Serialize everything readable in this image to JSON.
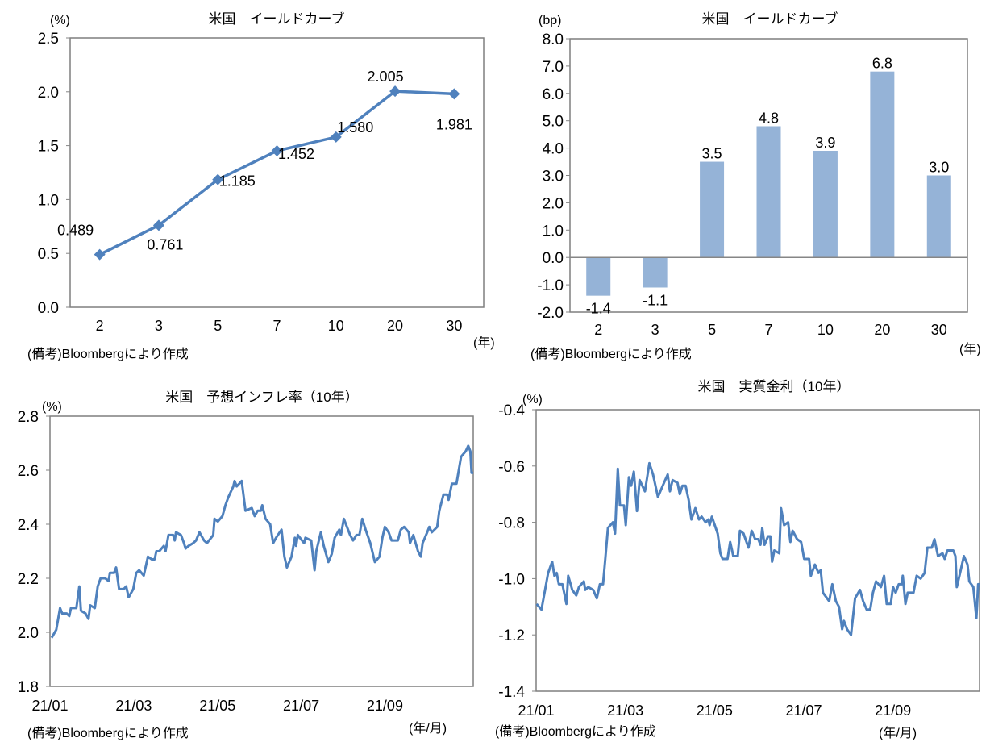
{
  "colors": {
    "line": "#4f81bd",
    "bar": "#95b3d7",
    "axis": "#868686",
    "frame": "#7f7f7f"
  },
  "chart_data": [
    {
      "id": "yield-curve-level",
      "type": "line",
      "title": "米国　イールドカーブ",
      "ylabel": "(%)",
      "xlabel": "(年)",
      "note": "(備考)Bloombergにより作成",
      "categories": [
        "2",
        "3",
        "5",
        "7",
        "10",
        "20",
        "30"
      ],
      "values": [
        0.489,
        0.761,
        1.185,
        1.452,
        1.58,
        2.005,
        1.981
      ],
      "data_labels": [
        "0.489",
        "0.761",
        "1.185",
        "1.452",
        "1.580",
        "2.005",
        "1.981"
      ],
      "ylim": [
        0,
        2.5
      ],
      "yticks": [
        0.0,
        0.5,
        1.0,
        1.5,
        2.0,
        2.5
      ],
      "ytick_labels": [
        "0.0",
        "0.5",
        "1.0",
        "1.5",
        "2.0",
        "2.5"
      ],
      "marker": "diamond",
      "grid": false
    },
    {
      "id": "yield-curve-change",
      "type": "bar",
      "title": "米国　イールドカーブ",
      "ylabel": "(bp)",
      "xlabel": "(年)",
      "note": "(備考)Bloombergにより作成",
      "categories": [
        "2",
        "3",
        "5",
        "7",
        "10",
        "20",
        "30"
      ],
      "values": [
        -1.4,
        -1.1,
        3.5,
        4.8,
        3.9,
        6.8,
        3.0
      ],
      "data_labels": [
        "-1.4",
        "-1.1",
        "3.5",
        "4.8",
        "3.9",
        "6.8",
        "3.0"
      ],
      "ylim": [
        -2,
        8
      ],
      "yticks": [
        -2,
        -1,
        0,
        1,
        2,
        3,
        4,
        5,
        6,
        7,
        8
      ],
      "ytick_labels": [
        "-2.0",
        "-1.0",
        "0.0",
        "1.0",
        "2.0",
        "3.0",
        "4.0",
        "5.0",
        "6.0",
        "7.0",
        "8.0"
      ],
      "grid": false
    },
    {
      "id": "inflation-expectation",
      "type": "line",
      "title": "米国　予想インフレ率（10年）",
      "ylabel": "(%)",
      "xlabel": "(年/月)",
      "note": "(備考)Bloombergにより作成",
      "x_unit": "months since 21/01",
      "xlim": [
        0,
        10.11
      ],
      "xticks": [
        0,
        2,
        4,
        6,
        8
      ],
      "xtick_labels": [
        "21/01",
        "21/03",
        "21/05",
        "21/07",
        "21/09"
      ],
      "ylim": [
        1.8,
        2.8
      ],
      "yticks": [
        1.8,
        2.0,
        2.2,
        2.4,
        2.6,
        2.8
      ],
      "ytick_labels": [
        "1.8",
        "2.0",
        "2.2",
        "2.4",
        "2.6",
        "2.8"
      ],
      "x": [
        0.04,
        0.15,
        0.24,
        0.29,
        0.4,
        0.46,
        0.5,
        0.63,
        0.7,
        0.74,
        0.85,
        0.92,
        0.96,
        1.07,
        1.14,
        1.21,
        1.32,
        1.4,
        1.43,
        1.53,
        1.58,
        1.65,
        1.76,
        1.82,
        1.88,
        1.99,
        2.06,
        2.13,
        2.24,
        2.34,
        2.43,
        2.5,
        2.54,
        2.61,
        2.72,
        2.76,
        2.83,
        2.94,
        2.98,
        3.01,
        3.13,
        3.2,
        3.24,
        3.31,
        3.42,
        3.49,
        3.57,
        3.68,
        3.75,
        3.9,
        3.93,
        4.01,
        4.12,
        4.19,
        4.26,
        4.38,
        4.41,
        4.46,
        4.58,
        4.67,
        4.82,
        4.89,
        4.96,
        5.04,
        5.07,
        5.15,
        5.26,
        5.33,
        5.4,
        5.53,
        5.6,
        5.66,
        5.77,
        5.85,
        5.88,
        5.92,
        6.07,
        6.1,
        6.24,
        6.32,
        6.36,
        6.47,
        6.54,
        6.65,
        6.73,
        6.8,
        6.91,
        6.95,
        7.02,
        7.17,
        7.24,
        7.32,
        7.39,
        7.46,
        7.54,
        7.65,
        7.76,
        7.87,
        7.94,
        8.0,
        8.09,
        8.16,
        8.31,
        8.38,
        8.46,
        8.57,
        8.6,
        8.68,
        8.79,
        8.86,
        8.9,
        9.01,
        9.06,
        9.12,
        9.25,
        9.3,
        9.4,
        9.49,
        9.52,
        9.6,
        9.71,
        9.82,
        9.93,
        9.99,
        10.04,
        10.07,
        10.11
      ],
      "y": [
        1.98,
        2.01,
        2.09,
        2.07,
        2.07,
        2.06,
        2.09,
        2.09,
        2.17,
        2.08,
        2.07,
        2.05,
        2.1,
        2.09,
        2.17,
        2.2,
        2.2,
        2.19,
        2.22,
        2.22,
        2.24,
        2.16,
        2.16,
        2.17,
        2.13,
        2.16,
        2.22,
        2.23,
        2.21,
        2.28,
        2.27,
        2.27,
        2.3,
        2.3,
        2.32,
        2.3,
        2.36,
        2.36,
        2.34,
        2.37,
        2.36,
        2.33,
        2.31,
        2.32,
        2.33,
        2.34,
        2.37,
        2.34,
        2.33,
        2.36,
        2.42,
        2.41,
        2.43,
        2.47,
        2.5,
        2.54,
        2.56,
        2.54,
        2.56,
        2.45,
        2.46,
        2.43,
        2.45,
        2.45,
        2.47,
        2.42,
        2.4,
        2.33,
        2.35,
        2.38,
        2.28,
        2.24,
        2.28,
        2.35,
        2.32,
        2.36,
        2.33,
        2.35,
        2.34,
        2.23,
        2.3,
        2.37,
        2.32,
        2.26,
        2.29,
        2.35,
        2.38,
        2.36,
        2.42,
        2.36,
        2.34,
        2.36,
        2.36,
        2.42,
        2.38,
        2.33,
        2.26,
        2.28,
        2.35,
        2.39,
        2.37,
        2.34,
        2.34,
        2.38,
        2.39,
        2.37,
        2.33,
        2.36,
        2.3,
        2.28,
        2.33,
        2.37,
        2.39,
        2.37,
        2.39,
        2.45,
        2.51,
        2.51,
        2.49,
        2.55,
        2.55,
        2.65,
        2.67,
        2.69,
        2.67,
        2.59,
        2.59
      ],
      "grid": false
    },
    {
      "id": "real-interest-rate",
      "type": "line",
      "title": "米国　実質金利（10年）",
      "ylabel": "(%)",
      "xlabel": "(年/月)",
      "note": "(備考)Bloombergにより作成",
      "x_unit": "months since 21/01",
      "xlim": [
        0,
        9.94
      ],
      "xticks": [
        0,
        2,
        4,
        6,
        8
      ],
      "xtick_labels": [
        "21/01",
        "21/03",
        "21/05",
        "21/07",
        "21/09"
      ],
      "ylim": [
        -1.4,
        -0.4
      ],
      "yticks": [
        -1.4,
        -1.2,
        -1.0,
        -0.8,
        -0.6,
        -0.4
      ],
      "ytick_labels": [
        "-1.4",
        "-1.2",
        "-1.0",
        "-0.8",
        "-0.6",
        "-0.4"
      ],
      "x": [
        0.01,
        0.12,
        0.2,
        0.27,
        0.36,
        0.41,
        0.46,
        0.51,
        0.59,
        0.68,
        0.72,
        0.81,
        0.9,
        0.96,
        1.07,
        1.1,
        1.17,
        1.28,
        1.36,
        1.43,
        1.5,
        1.55,
        1.61,
        1.72,
        1.77,
        1.83,
        1.88,
        1.97,
        2.01,
        2.08,
        2.13,
        2.19,
        2.26,
        2.32,
        2.44,
        2.54,
        2.62,
        2.73,
        2.84,
        2.95,
        3.0,
        3.06,
        3.17,
        3.22,
        3.28,
        3.35,
        3.42,
        3.48,
        3.57,
        3.65,
        3.71,
        3.8,
        3.86,
        3.89,
        3.94,
        4.07,
        4.13,
        4.18,
        4.29,
        4.35,
        4.42,
        4.52,
        4.57,
        4.65,
        4.76,
        4.83,
        4.91,
        4.98,
        5.03,
        5.07,
        5.12,
        5.2,
        5.25,
        5.29,
        5.34,
        5.45,
        5.49,
        5.56,
        5.65,
        5.7,
        5.75,
        5.85,
        5.94,
        6.01,
        6.12,
        6.16,
        6.25,
        6.33,
        6.38,
        6.43,
        6.57,
        6.64,
        6.72,
        6.79,
        6.86,
        6.9,
        6.97,
        7.06,
        7.15,
        7.26,
        7.33,
        7.41,
        7.49,
        7.55,
        7.62,
        7.73,
        7.8,
        7.86,
        7.95,
        8.0,
        8.06,
        8.13,
        8.2,
        8.22,
        8.28,
        8.33,
        8.46,
        8.53,
        8.62,
        8.71,
        8.77,
        8.87,
        8.93,
        9.01,
        9.11,
        9.16,
        9.22,
        9.35,
        9.4,
        9.43,
        9.49,
        9.59,
        9.67,
        9.71,
        9.8,
        9.87,
        9.91,
        9.94
      ],
      "y": [
        -1.09,
        -1.11,
        -1.04,
        -0.98,
        -0.94,
        -0.99,
        -0.98,
        -1.02,
        -1.02,
        -1.09,
        -0.99,
        -1.04,
        -1.06,
        -1.03,
        -1.01,
        -1.04,
        -1.03,
        -1.04,
        -1.07,
        -1.02,
        -1.02,
        -0.93,
        -0.82,
        -0.8,
        -0.84,
        -0.61,
        -0.74,
        -0.74,
        -0.81,
        -0.64,
        -0.67,
        -0.62,
        -0.76,
        -0.65,
        -0.69,
        -0.59,
        -0.63,
        -0.71,
        -0.67,
        -0.63,
        -0.69,
        -0.65,
        -0.66,
        -0.7,
        -0.67,
        -0.67,
        -0.72,
        -0.79,
        -0.75,
        -0.79,
        -0.78,
        -0.8,
        -0.79,
        -0.81,
        -0.78,
        -0.84,
        -0.91,
        -0.93,
        -0.93,
        -0.87,
        -0.92,
        -0.92,
        -0.83,
        -0.84,
        -0.89,
        -0.83,
        -0.86,
        -0.86,
        -0.88,
        -0.82,
        -0.88,
        -0.85,
        -0.85,
        -0.94,
        -0.9,
        -0.91,
        -0.75,
        -0.81,
        -0.8,
        -0.87,
        -0.83,
        -0.86,
        -0.87,
        -0.93,
        -0.93,
        -0.99,
        -0.95,
        -0.98,
        -0.97,
        -1.05,
        -1.08,
        -1.02,
        -1.08,
        -1.1,
        -1.18,
        -1.15,
        -1.18,
        -1.2,
        -1.07,
        -1.04,
        -1.08,
        -1.11,
        -1.11,
        -1.05,
        -1.01,
        -1.03,
        -0.99,
        -1.09,
        -1.09,
        -1.03,
        -1.05,
        -1.02,
        -1.02,
        -0.99,
        -1.09,
        -1.05,
        -1.05,
        -0.99,
        -1.0,
        -0.98,
        -0.89,
        -0.89,
        -0.86,
        -0.92,
        -0.91,
        -0.93,
        -0.9,
        -0.9,
        -0.92,
        -1.03,
        -0.99,
        -0.92,
        -0.95,
        -1.01,
        -1.03,
        -1.14,
        -1.02,
        -1.02
      ],
      "grid": false
    }
  ]
}
